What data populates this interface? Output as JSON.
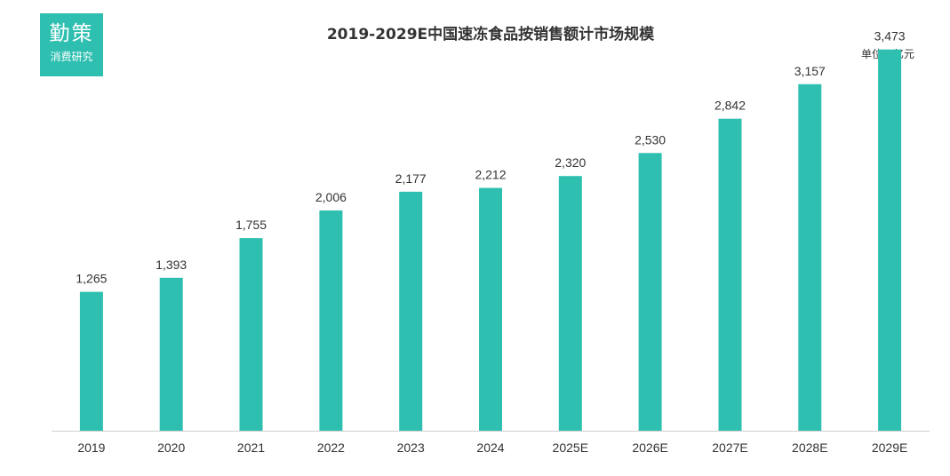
{
  "logo": {
    "main": "勤策",
    "sub": "消费研究"
  },
  "unit": "单位：亿元",
  "colors": {
    "bar": "#2fbfb1",
    "axis": "#d0d0d0",
    "label": "#333333"
  },
  "chart_data": {
    "type": "bar",
    "title": "2019-2029E中国速冻食品按销售额计市场规模",
    "xlabel": "",
    "ylabel": "",
    "ylim": [
      0,
      3600
    ],
    "grid": false,
    "categories": [
      "2019",
      "2020",
      "2021",
      "2022",
      "2023",
      "2024",
      "2025E",
      "2026E",
      "2027E",
      "2028E",
      "2029E"
    ],
    "values": [
      1265,
      1393,
      1755,
      2006,
      2177,
      2212,
      2320,
      2530,
      2842,
      3157,
      3473
    ],
    "value_labels": [
      "1,265",
      "1,393",
      "1,755",
      "2,006",
      "2,177",
      "2,212",
      "2,320",
      "2,530",
      "2,842",
      "3,157",
      "3,473"
    ]
  }
}
